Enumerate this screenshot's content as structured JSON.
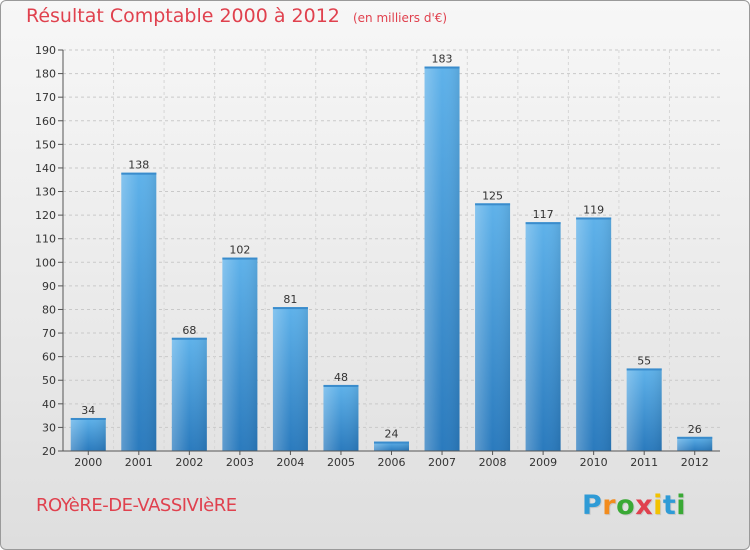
{
  "header": {
    "title": "Résultat Comptable 2000 à 2012",
    "unit": "(en milliers d'€)"
  },
  "commune": "ROYèRE-DE-VASSIVIèRE",
  "logo": {
    "letters": [
      "P",
      "r",
      "o",
      "x",
      "i",
      "t",
      "i"
    ],
    "colors": [
      "#2f9bd6",
      "#f28c1e",
      "#3aa935",
      "#e0414e",
      "#f2c200",
      "#2f9bd6",
      "#3aa935"
    ]
  },
  "colors": {
    "bar_light": "#5aaee6",
    "bar_dark": "#2d7fc0",
    "title": "#e0414e"
  },
  "chart_data": {
    "type": "bar",
    "title": "Résultat Comptable 2000 à 2012",
    "subtitle": "(en milliers d'€)",
    "categories": [
      "2000",
      "2001",
      "2002",
      "2003",
      "2004",
      "2005",
      "2006",
      "2007",
      "2008",
      "2009",
      "2010",
      "2011",
      "2012"
    ],
    "values": [
      34,
      138,
      68,
      102,
      81,
      48,
      24,
      183,
      125,
      117,
      119,
      55,
      26
    ],
    "ylim": [
      20,
      190
    ],
    "yticks": [
      20,
      30,
      40,
      50,
      60,
      70,
      80,
      90,
      100,
      110,
      120,
      130,
      140,
      150,
      160,
      170,
      180,
      190
    ],
    "grid": true,
    "legend": "none"
  }
}
